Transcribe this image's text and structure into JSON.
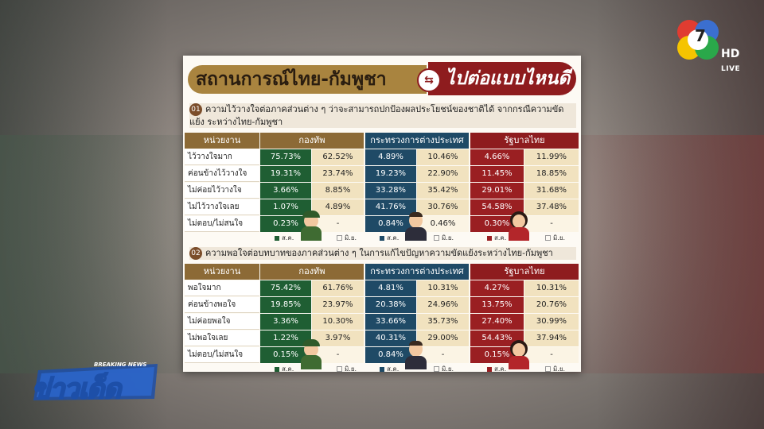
{
  "title": {
    "left": "สถานการณ์ไทย-กัมพูชา",
    "right": "ไปต่อแบบไหนดี",
    "arrow_icon": "double-arrow-icon"
  },
  "channel": {
    "number": "7",
    "hd": "HD",
    "live": "LIVE"
  },
  "program": {
    "breaking": "BREAKING NEWS",
    "name": "ข่าวเด็ด"
  },
  "q1": {
    "num": "01",
    "text": "ความไว้วางใจต่อภาคส่วนต่าง ๆ ว่าจะสามารถปกป้องผลประโยชน์ของชาติได้ จากกรณีความขัดแย้ง ระหว่างไทย-กัมพูชา",
    "headers": {
      "unit": "หน่วยงาน",
      "army": "กองทัพ",
      "mfa": "กระทรวงการต่างประเทศ",
      "gov": "รัฐบาลไทย"
    },
    "rows": [
      {
        "label": "ไว้วางใจมาก",
        "a1": "75.73%",
        "a2": "62.52%",
        "m1": "4.89%",
        "m2": "10.46%",
        "g1": "4.66%",
        "g2": "11.99%"
      },
      {
        "label": "ค่อนข้างไว้วางใจ",
        "a1": "19.31%",
        "a2": "23.74%",
        "m1": "19.23%",
        "m2": "22.90%",
        "g1": "11.45%",
        "g2": "18.85%"
      },
      {
        "label": "ไม่ค่อยไว้วางใจ",
        "a1": "3.66%",
        "a2": "8.85%",
        "m1": "33.28%",
        "m2": "35.42%",
        "g1": "29.01%",
        "g2": "31.68%"
      },
      {
        "label": "ไม่ไว้วางใจเลย",
        "a1": "1.07%",
        "a2": "4.89%",
        "m1": "41.76%",
        "m2": "30.76%",
        "g1": "54.58%",
        "g2": "37.48%"
      },
      {
        "label": "ไม่ตอบ/ไม่สนใจ",
        "a1": "0.23%",
        "a2": "-",
        "m1": "0.84%",
        "m2": "0.46%",
        "g1": "0.30%",
        "g2": "-"
      }
    ]
  },
  "q2": {
    "num": "02",
    "text": "ความพอใจต่อบทบาทของภาคส่วนต่าง ๆ ในการแก้ไขปัญหาความขัดแย้งระหว่างไทย-กัมพูชา",
    "headers": {
      "unit": "หน่วยงาน",
      "army": "กองทัพ",
      "mfa": "กระทรวงการต่างประเทศ",
      "gov": "รัฐบาลไทย"
    },
    "rows": [
      {
        "label": "พอใจมาก",
        "a1": "75.42%",
        "a2": "61.76%",
        "m1": "4.81%",
        "m2": "10.31%",
        "g1": "4.27%",
        "g2": "10.31%"
      },
      {
        "label": "ค่อนข้างพอใจ",
        "a1": "19.85%",
        "a2": "23.97%",
        "m1": "20.38%",
        "m2": "24.96%",
        "g1": "13.75%",
        "g2": "20.76%"
      },
      {
        "label": "ไม่ค่อยพอใจ",
        "a1": "3.36%",
        "a2": "10.30%",
        "m1": "33.66%",
        "m2": "35.73%",
        "g1": "27.40%",
        "g2": "30.99%"
      },
      {
        "label": "ไม่พอใจเลย",
        "a1": "1.22%",
        "a2": "3.97%",
        "m1": "40.31%",
        "m2": "29.00%",
        "g1": "54.43%",
        "g2": "37.94%"
      },
      {
        "label": "ไม่ตอบ/ไม่สนใจ",
        "a1": "0.15%",
        "a2": "-",
        "m1": "0.84%",
        "m2": "-",
        "g1": "0.15%",
        "g2": "-"
      }
    ]
  },
  "legend": {
    "aug": "ส.ค.",
    "jun": "มิ.ย."
  },
  "colors": {
    "army": "#1f5e33",
    "mfa": "#1f4a66",
    "gov": "#9a1f22",
    "prev": "#f1e2bf",
    "brown": "#8c6a36"
  }
}
